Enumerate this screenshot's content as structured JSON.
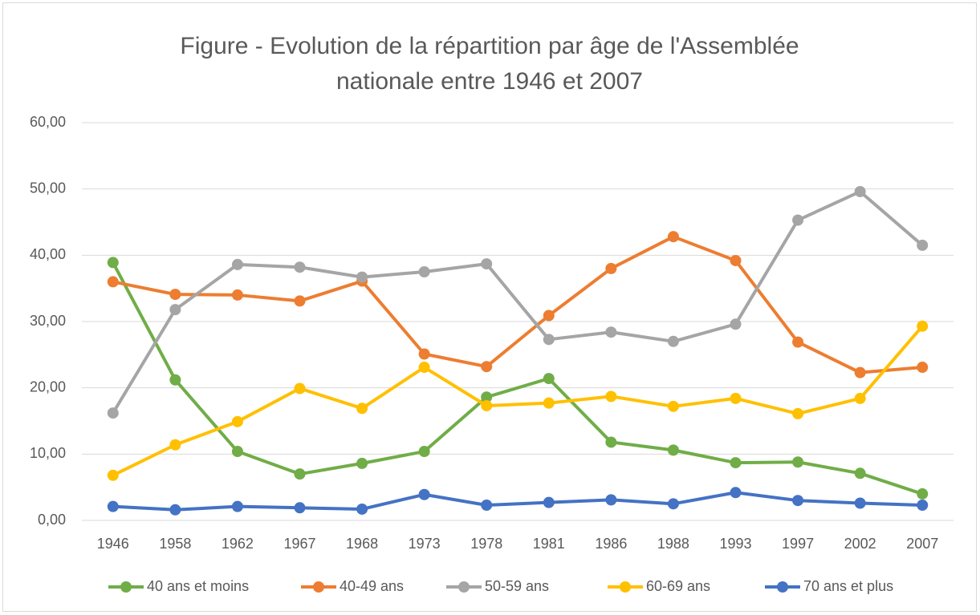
{
  "chart_data": {
    "type": "line",
    "title": "Figure - Evolution de la répartition par âge de l'Assemblée nationale entre 1946 et 2007",
    "categories": [
      "1946",
      "1958",
      "1962",
      "1967",
      "1968",
      "1973",
      "1978",
      "1981",
      "1986",
      "1988",
      "1993",
      "1997",
      "2002",
      "2007"
    ],
    "series": [
      {
        "name": "40 ans et moins",
        "color": "#70ad47",
        "values": [
          38.9,
          21.2,
          10.4,
          7.0,
          8.6,
          10.4,
          18.6,
          21.4,
          11.8,
          10.6,
          8.7,
          8.8,
          7.1,
          4.0
        ]
      },
      {
        "name": "40-49 ans",
        "color": "#ed7d31",
        "values": [
          36.0,
          34.1,
          34.0,
          33.1,
          36.1,
          25.1,
          23.2,
          30.9,
          38.0,
          42.8,
          39.2,
          26.9,
          22.3,
          23.1
        ]
      },
      {
        "name": "50-59 ans",
        "color": "#a5a5a5",
        "values": [
          16.2,
          31.8,
          38.6,
          38.2,
          36.7,
          37.5,
          38.7,
          27.3,
          28.4,
          27.0,
          29.6,
          45.3,
          49.6,
          41.5
        ]
      },
      {
        "name": "60-69 ans",
        "color": "#ffc000",
        "values": [
          6.8,
          11.4,
          14.9,
          19.9,
          16.9,
          23.1,
          17.3,
          17.7,
          18.7,
          17.2,
          18.4,
          16.1,
          18.4,
          29.3
        ]
      },
      {
        "name": "70 ans et plus",
        "color": "#4472c4",
        "values": [
          2.1,
          1.6,
          2.1,
          1.9,
          1.7,
          3.9,
          2.3,
          2.7,
          3.1,
          2.5,
          4.2,
          3.0,
          2.6,
          2.3
        ]
      }
    ],
    "ylim": [
      0,
      60
    ],
    "yticks": [
      {
        "value": 0,
        "label": "0,00"
      },
      {
        "value": 10,
        "label": "10,00"
      },
      {
        "value": 20,
        "label": "20,00"
      },
      {
        "value": 30,
        "label": "30,00"
      },
      {
        "value": 40,
        "label": "40,00"
      },
      {
        "value": 50,
        "label": "50,00"
      },
      {
        "value": 60,
        "label": "60,00"
      }
    ],
    "grid": true,
    "legend": "bottom"
  }
}
